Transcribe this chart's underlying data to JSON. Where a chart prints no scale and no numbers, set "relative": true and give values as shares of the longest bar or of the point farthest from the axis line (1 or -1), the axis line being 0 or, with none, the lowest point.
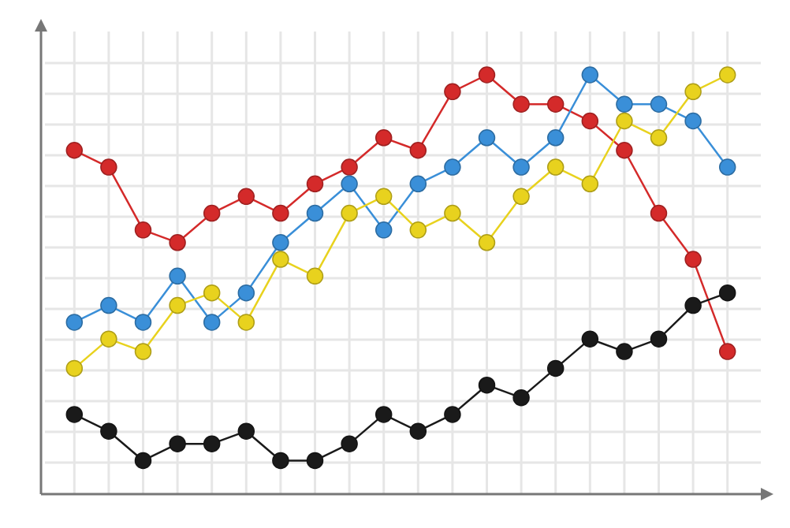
{
  "chart_data": {
    "type": "line",
    "relative": true,
    "grid": true,
    "marker": "circle",
    "line_style": "solid",
    "categories": [
      null,
      null,
      null,
      null,
      null,
      null,
      null,
      null,
      null,
      null,
      null,
      null,
      null,
      null,
      null,
      null,
      null,
      null,
      null,
      null
    ],
    "series": [
      {
        "color": "#d42a2a",
        "values": [
          0.82,
          0.78,
          0.63,
          0.6,
          0.67,
          0.71,
          0.67,
          0.74,
          0.78,
          0.85,
          0.82,
          0.96,
          1,
          0.93,
          0.93,
          0.89,
          0.82,
          0.67,
          0.56,
          0.34
        ]
      },
      {
        "color": "#3a8fd8",
        "values": [
          0.41,
          0.45,
          0.41,
          0.52,
          0.41,
          0.48,
          0.6,
          0.67,
          0.74,
          0.63,
          0.74,
          0.78,
          0.85,
          0.78,
          0.85,
          1,
          0.93,
          0.93,
          0.89,
          0.78
        ]
      },
      {
        "color": "#e8d21e",
        "values": [
          0.3,
          0.37,
          0.34,
          0.45,
          0.48,
          0.41,
          0.56,
          0.52,
          0.67,
          0.71,
          0.63,
          0.67,
          0.6,
          0.71,
          0.78,
          0.74,
          0.89,
          0.85,
          0.96,
          1
        ]
      },
      {
        "color": "#1a1a1a",
        "values": [
          0.19,
          0.15,
          0.08,
          0.12,
          0.12,
          0.15,
          0.08,
          0.08,
          0.12,
          0.19,
          0.15,
          0.19,
          0.26,
          0.23,
          0.3,
          0.37,
          0.34,
          0.37,
          0.45,
          0.48
        ]
      }
    ]
  }
}
